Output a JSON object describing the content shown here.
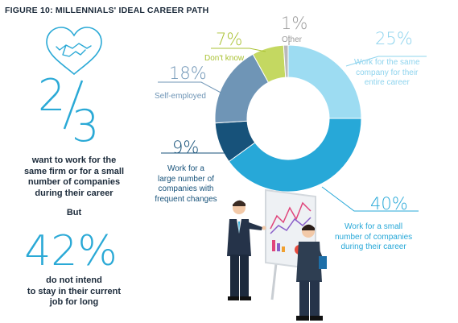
{
  "figure_title": "FIGURE 10: MILLENNIALS' IDEAL CAREER PATH",
  "left_panel": {
    "fraction_numerator": "2",
    "fraction_denominator": "3",
    "want_text": [
      "want to work for the",
      "same firm or for a small",
      "number of companies",
      "during their career"
    ],
    "but_text": "But",
    "percent_42": "42%",
    "intend_text": [
      "do not intend",
      "to stay in their current",
      "job for long"
    ]
  },
  "colors": {
    "title": "#1b2a3a",
    "accent_blue": "#2aa9d6",
    "text_dark": "#1b2a3a"
  },
  "icons": [
    "heart-handshake-icon",
    "presenter-illustration",
    "whiteboard-chart-illustration"
  ],
  "chart_data": {
    "type": "pie",
    "donut": true,
    "title": "",
    "slices": [
      {
        "value": 25,
        "pct_label": "25%",
        "label": [
          "Work for the same",
          "company for their",
          "entire career"
        ],
        "color": "#9ddcf2",
        "label_color": "#8fd4ee"
      },
      {
        "value": 40,
        "pct_label": "40%",
        "label": [
          "Work for a small",
          "number of companies",
          "during their career"
        ],
        "color": "#27a8d8",
        "label_color": "#27a8d8"
      },
      {
        "value": 9,
        "pct_label": "9%",
        "label": [
          "Work for a",
          "large number of",
          "companies with",
          "frequent changes"
        ],
        "color": "#17527a",
        "label_color": "#17527a"
      },
      {
        "value": 18,
        "pct_label": "18%",
        "label": [
          "Self-employed"
        ],
        "color": "#6f95b6",
        "label_color": "#6f95b6"
      },
      {
        "value": 7,
        "pct_label": "7%",
        "label": [
          "Don't know"
        ],
        "color": "#c4d861",
        "label_color": "#aac234"
      },
      {
        "value": 1,
        "pct_label": "1%",
        "label": [
          "Other"
        ],
        "color": "#b9b9b9",
        "label_color": "#9a9a9a"
      }
    ]
  }
}
